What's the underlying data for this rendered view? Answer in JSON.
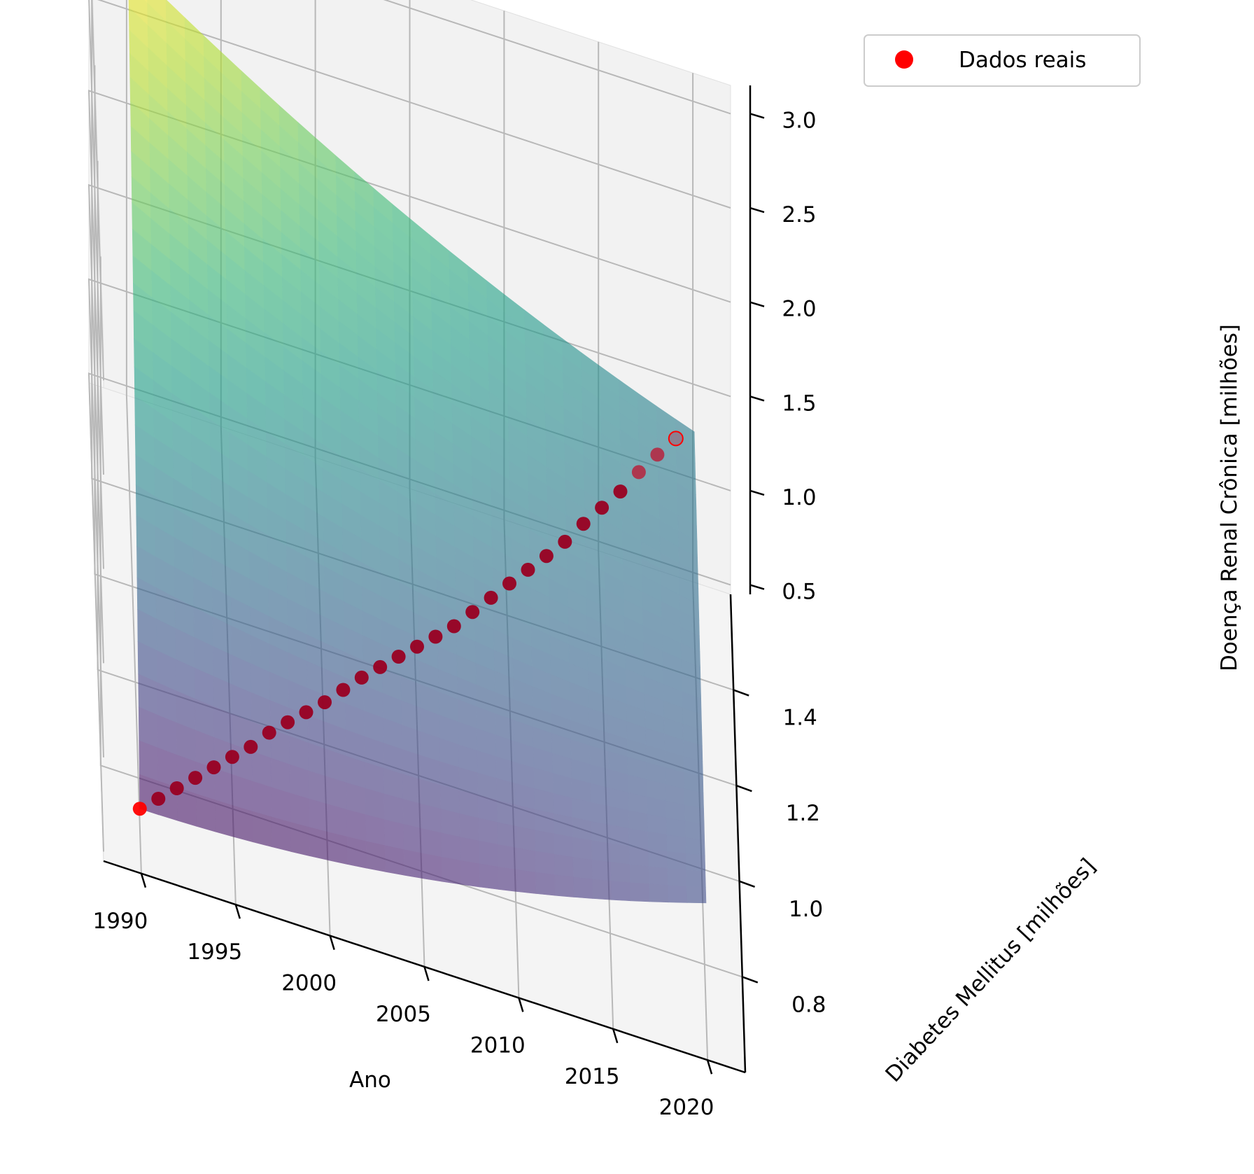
{
  "chart_data": {
    "type": "surface3d",
    "xlabel": "Ano",
    "ylabel": "Diabetes Mellitus [milhões]",
    "zlabel": "Doença Renal Crônica [milhões]",
    "x_ticks": [
      "1990",
      "1995",
      "2000",
      "2005",
      "2010",
      "2015",
      "2020"
    ],
    "y_ticks": [
      "0.8",
      "1.0",
      "1.2",
      "1.4"
    ],
    "z_ticks": [
      "0.5",
      "1.0",
      "1.5",
      "2.0",
      "2.5",
      "3.0"
    ],
    "xlim": [
      1988,
      2022
    ],
    "ylim": [
      0.6,
      1.6
    ],
    "zlim": [
      0.45,
      3.15
    ],
    "legend": {
      "label": "Dados reais",
      "placement": "top-right",
      "marker_color": "#ff0000"
    },
    "surface": {
      "colormap": "viridis",
      "alpha": 0.6,
      "model": "quadratic",
      "corners": {
        "x1990_y0.70": 0.54,
        "x1990_y1.50": 3.0,
        "x2020_y0.70": 1.03,
        "x2020_y1.50": 1.5
      }
    },
    "series": [
      {
        "name": "Dados reais",
        "type": "scatter",
        "color": "#ff0000",
        "x": [
          1990,
          1991,
          1992,
          1993,
          1994,
          1995,
          1996,
          1997,
          1998,
          1999,
          2000,
          2001,
          2002,
          2003,
          2004,
          2005,
          2006,
          2007,
          2008,
          2009,
          2010,
          2011,
          2012,
          2013,
          2014,
          2015,
          2016,
          2017,
          2018,
          2019
        ],
        "y": [
          0.7,
          0.726,
          0.753,
          0.78,
          0.807,
          0.834,
          0.86,
          0.887,
          0.914,
          0.94,
          0.966,
          0.993,
          1.02,
          1.047,
          1.074,
          1.1,
          1.126,
          1.153,
          1.18,
          1.207,
          1.234,
          1.26,
          1.286,
          1.313,
          1.34,
          1.367,
          1.394,
          1.42,
          1.446,
          1.473
        ],
        "z": [
          0.54,
          0.56,
          0.58,
          0.6,
          0.62,
          0.64,
          0.66,
          0.7,
          0.72,
          0.74,
          0.76,
          0.79,
          0.82,
          0.84,
          0.86,
          0.88,
          0.9,
          0.92,
          0.96,
          1.0,
          1.04,
          1.08,
          1.12,
          1.16,
          1.22,
          1.27,
          1.32,
          1.39,
          1.45,
          1.5
        ]
      }
    ]
  }
}
